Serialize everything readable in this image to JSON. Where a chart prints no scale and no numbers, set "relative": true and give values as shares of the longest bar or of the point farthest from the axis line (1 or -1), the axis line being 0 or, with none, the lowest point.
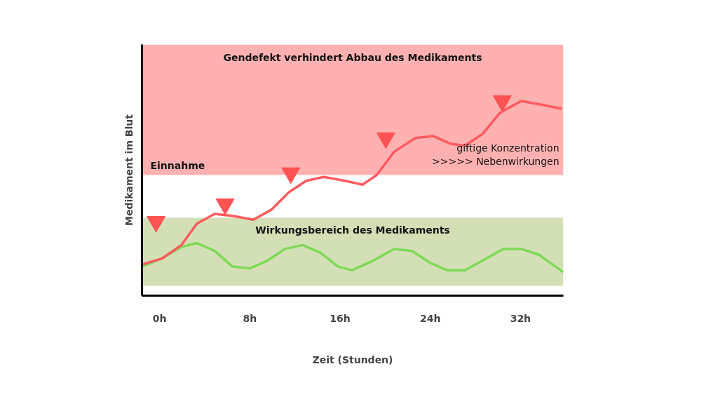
{
  "chart_data": {
    "type": "line",
    "relative": true,
    "xlabel": "Zeit (Stunden)",
    "ylabel": "Medikament im Blut",
    "xlim": [
      -1.56,
      35.8
    ],
    "xticks": [
      {
        "value": 0,
        "label": "0h"
      },
      {
        "value": 8,
        "label": "8h"
      },
      {
        "value": 16,
        "label": "16h"
      },
      {
        "value": 24,
        "label": "24h"
      },
      {
        "value": 32,
        "label": "32h"
      }
    ],
    "grid": false,
    "series": [
      {
        "color": "#ff5a5f",
        "x": [
          -1.56,
          0.19,
          1.94,
          3.31,
          4.88,
          6.44,
          8.31,
          9.88,
          11.44,
          13.0,
          14.56,
          16.44,
          18.0,
          19.25,
          20.81,
          22.69,
          24.25,
          25.81,
          27.06,
          28.63,
          30.19,
          32.06,
          33.94,
          35.63
        ],
        "values": [
          0.16,
          0.19,
          0.26,
          0.37,
          0.42,
          0.41,
          0.39,
          0.44,
          0.53,
          0.59,
          0.61,
          0.59,
          0.57,
          0.62,
          0.74,
          0.81,
          0.82,
          0.78,
          0.77,
          0.83,
          0.94,
          1.0,
          0.98,
          0.96
        ]
      },
      {
        "color": "#7ed957",
        "x": [
          -1.56,
          0.19,
          1.94,
          3.31,
          4.88,
          6.44,
          8.0,
          9.56,
          11.13,
          12.69,
          14.25,
          15.81,
          17.06,
          18.94,
          20.81,
          22.38,
          23.94,
          25.5,
          27.06,
          28.94,
          30.5,
          32.06,
          33.63,
          35.8
        ],
        "values": [
          0.15,
          0.19,
          0.25,
          0.27,
          0.23,
          0.15,
          0.14,
          0.18,
          0.24,
          0.26,
          0.22,
          0.15,
          0.13,
          0.18,
          0.24,
          0.23,
          0.17,
          0.13,
          0.13,
          0.19,
          0.24,
          0.24,
          0.21,
          0.12
        ]
      },
      {
        "type": "scatter",
        "marker": "triangle",
        "color": "#ff5252",
        "x": [
          -0.31,
          5.81,
          11.63,
          20.06,
          30.38
        ],
        "values": [
          0.38,
          0.47,
          0.63,
          0.81,
          1.0
        ]
      }
    ],
    "bands": [
      {
        "axis": "y",
        "from": 0.62,
        "to": 1.29,
        "label": "Gendefekt verhindert Abbau des Medikaments",
        "color": "#ffb1b1"
      },
      {
        "axis": "y",
        "from": 0.05,
        "to": 0.4,
        "label": "Wirkungsbereich des Medikaments",
        "color": "#d3e0b6"
      }
    ],
    "annotations": [
      "Einnahme",
      "giftige Konzentration\n>>>>> Nebenwirkungen"
    ]
  }
}
